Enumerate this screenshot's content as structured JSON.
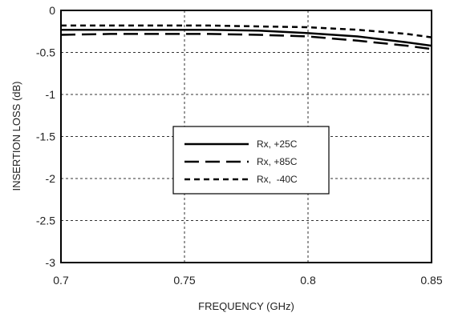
{
  "chart_data": {
    "type": "line",
    "xlabel": "FREQUENCY (GHz)",
    "ylabel": "INSERTION LOSS (dB)",
    "xlim": [
      0.7,
      0.85
    ],
    "ylim": [
      -3,
      0
    ],
    "x_ticks": [
      "0.7",
      "0.75",
      "0.8",
      "0.85"
    ],
    "y_ticks": [
      "0",
      "-0.5",
      "-1",
      "-1.5",
      "-2",
      "-2.5",
      "-3"
    ],
    "grid": true,
    "legend_position": "center",
    "series": [
      {
        "name": "Rx, +25C",
        "style": "solid",
        "x": [
          0.7,
          0.72,
          0.74,
          0.76,
          0.78,
          0.8,
          0.82,
          0.84,
          0.85
        ],
        "y": [
          -0.23,
          -0.23,
          -0.23,
          -0.23,
          -0.24,
          -0.27,
          -0.31,
          -0.38,
          -0.42
        ]
      },
      {
        "name": "Rx, +85C",
        "style": "long-dash",
        "x": [
          0.7,
          0.72,
          0.74,
          0.76,
          0.78,
          0.8,
          0.82,
          0.84,
          0.85
        ],
        "y": [
          -0.29,
          -0.28,
          -0.28,
          -0.28,
          -0.29,
          -0.31,
          -0.36,
          -0.42,
          -0.46
        ]
      },
      {
        "name": "Rx,  -40C",
        "style": "short-dash",
        "x": [
          0.7,
          0.72,
          0.74,
          0.76,
          0.78,
          0.8,
          0.82,
          0.84,
          0.85
        ],
        "y": [
          -0.18,
          -0.18,
          -0.18,
          -0.18,
          -0.19,
          -0.2,
          -0.23,
          -0.28,
          -0.32
        ]
      }
    ]
  }
}
